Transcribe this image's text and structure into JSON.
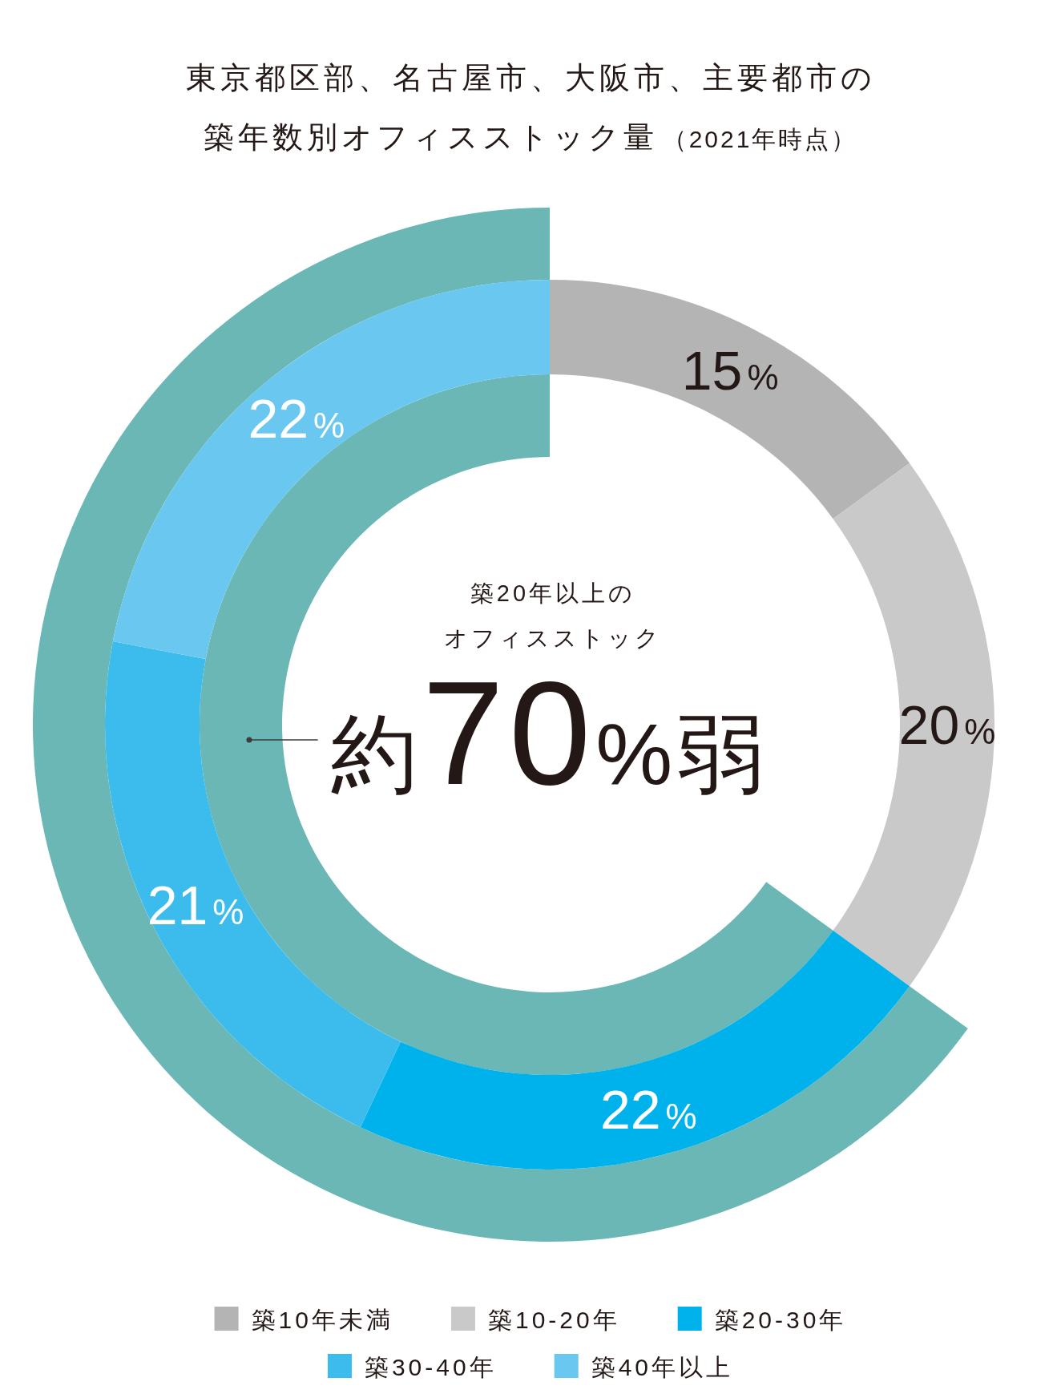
{
  "chart_data": {
    "type": "donut",
    "title": "東京都区部、名古屋市、大阪市、主要都市の築年数別オフィスストック量",
    "subtitle": "（2021年時点）",
    "categories": [
      "築10年未満",
      "築10-20年",
      "築20-30年",
      "築30-40年",
      "築40年以上"
    ],
    "values": [
      15,
      20,
      22,
      21,
      22
    ],
    "colors": [
      "#b4b4b4",
      "#c9c9c9",
      "#00b2ec",
      "#3bbced",
      "#6ac8f0"
    ],
    "value_labels": [
      "15%",
      "20%",
      "22%",
      "21%",
      "22%"
    ],
    "annotations": [
      "築20年以上の",
      "オフィスストック",
      "約70%弱"
    ],
    "legend": "bottom"
  }
}
